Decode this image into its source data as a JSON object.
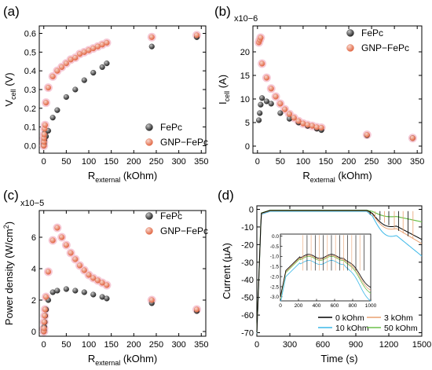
{
  "chart_data": [
    {
      "panel": "(a)",
      "type": "scatter",
      "xlabel": {
        "main": "R",
        "sub": "external",
        "unit": " (kOhm)"
      },
      "ylabel": {
        "main": "V",
        "sub": "cell",
        "unit": " (V)"
      },
      "xlim": [
        -10,
        360
      ],
      "ylim": [
        -0.04,
        0.64
      ],
      "xticks": [
        0,
        50,
        100,
        150,
        200,
        250,
        300,
        350
      ],
      "yticks": [
        "0.0",
        "0.1",
        "0.2",
        "0.3",
        "0.4",
        "0.5",
        "0.6"
      ],
      "ytick_values": [
        0,
        0.1,
        0.2,
        0.3,
        0.4,
        0.5,
        0.6
      ],
      "legend_position": "lower-right",
      "series": [
        {
          "name": "FePc",
          "color": "#1a1a1a",
          "x": [
            0.1,
            0.3,
            0.5,
            1,
            2,
            3,
            5,
            10,
            20,
            30,
            50,
            70,
            90,
            110,
            130,
            140,
            240,
            340
          ],
          "y": [
            0.0,
            0.01,
            0.02,
            0.03,
            0.05,
            0.07,
            0.05,
            0.08,
            0.15,
            0.19,
            0.26,
            0.3,
            0.35,
            0.39,
            0.42,
            0.44,
            0.53,
            0.58
          ]
        },
        {
          "name": "GNP−FePc",
          "color": "#e0603a",
          "x": [
            0.1,
            0.3,
            0.5,
            1,
            2,
            3,
            5,
            10,
            20,
            30,
            40,
            50,
            60,
            70,
            80,
            90,
            100,
            110,
            120,
            130,
            140,
            240,
            340
          ],
          "y": [
            0.0,
            0.02,
            0.04,
            0.06,
            0.09,
            0.11,
            0.23,
            0.31,
            0.37,
            0.4,
            0.42,
            0.44,
            0.46,
            0.47,
            0.49,
            0.5,
            0.51,
            0.52,
            0.53,
            0.54,
            0.55,
            0.58,
            0.59
          ]
        }
      ]
    },
    {
      "panel": "(b)",
      "type": "scatter",
      "multiplier": "x10−6",
      "xlabel": {
        "main": "R",
        "sub": "external",
        "unit": " (kOhm)"
      },
      "ylabel": {
        "main": "I",
        "sub": "cell",
        "unit": " (A)"
      },
      "xlim": [
        -10,
        360
      ],
      "ylim": [
        -1.5,
        25.5
      ],
      "xticks": [
        0,
        50,
        100,
        150,
        200,
        250,
        300,
        350
      ],
      "yticks": [
        "0",
        "5",
        "10",
        "15",
        "20"
      ],
      "ytick_values": [
        0,
        5,
        10,
        15,
        20
      ],
      "legend_position": "top-right",
      "series": [
        {
          "name": "FePc",
          "color": "#1a1a1a",
          "x": [
            3,
            5,
            7,
            10,
            20,
            30,
            50,
            70,
            90,
            110,
            130,
            140,
            240,
            340
          ],
          "y": [
            5.5,
            7.0,
            8.8,
            10.2,
            9.5,
            9.0,
            7.0,
            5.8,
            5.0,
            4.3,
            3.7,
            3.4,
            2.3,
            1.7
          ]
        },
        {
          "name": "GNP−FePc",
          "color": "#e0603a",
          "x": [
            3,
            5,
            7,
            10,
            20,
            30,
            40,
            50,
            60,
            70,
            80,
            90,
            100,
            110,
            120,
            130,
            140,
            240,
            340
          ],
          "y": [
            22.0,
            22.5,
            23.0,
            17.5,
            14.5,
            12.2,
            10.5,
            9.0,
            7.8,
            6.8,
            6.0,
            5.3,
            4.8,
            4.5,
            4.3,
            4.0,
            3.9,
            2.4,
            1.7
          ]
        }
      ]
    },
    {
      "panel": "(c)",
      "type": "scatter",
      "multiplier": "x10−5",
      "xlabel": {
        "main": "R",
        "sub": "external",
        "unit": " (kOhm)"
      },
      "ylabel": {
        "main": "Power density (W/cm",
        "sup": "2",
        "unit": ")"
      },
      "xlim": [
        -10,
        360
      ],
      "ylim": [
        -0.3,
        7.7
      ],
      "xticks": [
        0,
        50,
        100,
        150,
        200,
        250,
        300,
        350
      ],
      "yticks": [
        "0",
        "2",
        "4",
        "6"
      ],
      "ytick_values": [
        0,
        2,
        4,
        6
      ],
      "legend_position": "top-right",
      "series": [
        {
          "name": "FePc",
          "color": "#1a1a1a",
          "x": [
            0.2,
            0.5,
            1,
            2,
            3,
            5,
            10,
            20,
            30,
            50,
            70,
            90,
            110,
            130,
            140,
            240,
            340
          ],
          "y": [
            0.0,
            0.1,
            0.3,
            0.6,
            1.0,
            1.4,
            2.0,
            2.5,
            2.6,
            2.7,
            2.6,
            2.5,
            2.35,
            2.2,
            2.1,
            1.8,
            1.3
          ]
        },
        {
          "name": "GNP−FePc",
          "color": "#e0603a",
          "x": [
            0.2,
            0.5,
            1,
            2,
            3,
            5,
            10,
            20,
            30,
            40,
            50,
            60,
            70,
            80,
            90,
            100,
            110,
            120,
            130,
            140,
            240,
            340
          ],
          "y": [
            0.0,
            0.2,
            0.6,
            1.0,
            1.4,
            2.2,
            3.8,
            5.8,
            6.6,
            6.0,
            5.5,
            5.0,
            4.6,
            4.2,
            3.9,
            3.6,
            3.4,
            3.25,
            3.1,
            2.95,
            2.0,
            1.4
          ]
        }
      ]
    },
    {
      "panel": "(d)",
      "type": "line",
      "xlabel": {
        "main": "Time (s)"
      },
      "ylabel": {
        "main": "Current (µA)"
      },
      "xlim": [
        0,
        1500
      ],
      "ylim": [
        -72,
        2
      ],
      "xticks": [
        0,
        300,
        600,
        900,
        1200,
        1500
      ],
      "yticks": [
        "0",
        "-10",
        "-20",
        "-30",
        "-40",
        "-50",
        "-60",
        "-70"
      ],
      "ytick_values": [
        0,
        -10,
        -20,
        -30,
        -40,
        -50,
        -60,
        -70
      ],
      "legend_position": "bottom-right",
      "legend_columns": 2,
      "series": [
        {
          "name": "0    kOhm",
          "color": "#000000"
        },
        {
          "name": "3    kOhm",
          "color": "#e8a070"
        },
        {
          "name": "10 kOhm",
          "color": "#3bb8e8"
        },
        {
          "name": "50 kOhm",
          "color": "#6cc04a"
        }
      ],
      "inset": {
        "xlim": [
          0,
          1000
        ],
        "ylim": [
          -3.2,
          0.1
        ],
        "xticks": [
          0,
          200,
          400,
          600,
          800,
          1000
        ],
        "yticks": [
          "0.0",
          "-0.5",
          "-1.0",
          "-1.5",
          "-2.0",
          "-2.5",
          "-3.0"
        ],
        "ytick_values": [
          0,
          -0.5,
          -1,
          -1.5,
          -2,
          -2.5,
          -3
        ]
      }
    }
  ]
}
